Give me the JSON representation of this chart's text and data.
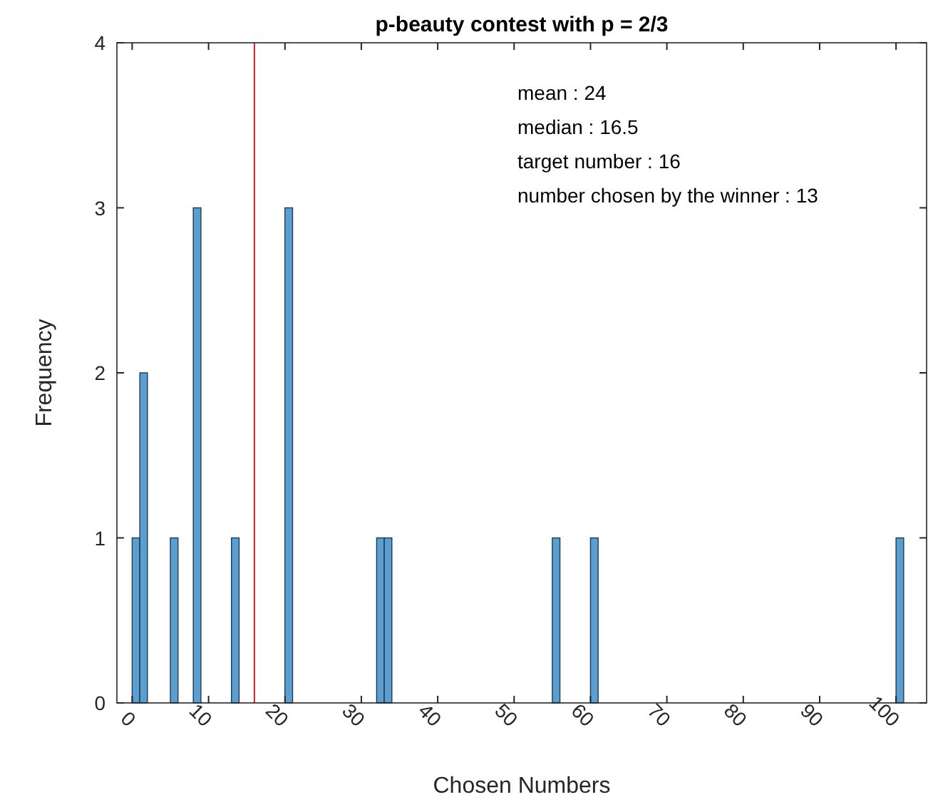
{
  "chart_data": {
    "type": "histogram",
    "title": "p-beauty contest with p = 2/3",
    "xlabel": "Chosen Numbers",
    "ylabel": "Frequency",
    "bins": [
      0,
      1,
      2,
      3,
      4,
      5,
      6,
      7,
      8,
      9,
      10,
      11,
      12,
      13,
      14,
      15,
      16,
      17,
      18,
      19,
      20,
      21,
      22,
      23,
      24,
      25,
      26,
      27,
      28,
      29,
      30,
      31,
      32,
      33,
      34,
      35,
      36,
      37,
      38,
      39,
      40,
      41,
      42,
      43,
      44,
      45,
      46,
      47,
      48,
      49,
      50,
      51,
      52,
      53,
      54,
      55,
      56,
      57,
      58,
      59,
      60,
      61,
      62,
      63,
      64,
      65,
      66,
      67,
      68,
      69,
      70,
      71,
      72,
      73,
      74,
      75,
      76,
      77,
      78,
      79,
      80,
      81,
      82,
      83,
      84,
      85,
      86,
      87,
      88,
      89,
      90,
      91,
      92,
      93,
      94,
      95,
      96,
      97,
      98,
      99,
      100,
      101
    ],
    "values": [
      1,
      2,
      0,
      0,
      0,
      1,
      0,
      0,
      3,
      0,
      0,
      0,
      0,
      1,
      0,
      0,
      0,
      0,
      0,
      0,
      3,
      0,
      0,
      0,
      0,
      0,
      0,
      0,
      0,
      0,
      0,
      0,
      1,
      1,
      0,
      0,
      0,
      0,
      0,
      0,
      0,
      0,
      0,
      0,
      0,
      0,
      0,
      0,
      0,
      0,
      0,
      0,
      0,
      0,
      0,
      1,
      0,
      0,
      0,
      0,
      1,
      0,
      0,
      0,
      0,
      0,
      0,
      0,
      0,
      0,
      0,
      0,
      0,
      0,
      0,
      0,
      0,
      0,
      0,
      0,
      0,
      0,
      0,
      0,
      0,
      0,
      0,
      0,
      0,
      0,
      0,
      0,
      0,
      0,
      0,
      0,
      0,
      0,
      0,
      0,
      1
    ],
    "color": "#5a9fd0",
    "xlim": [
      -2,
      104
    ],
    "xticks": [
      0,
      10,
      20,
      30,
      40,
      50,
      60,
      70,
      80,
      90,
      100
    ],
    "ylim": [
      0,
      4
    ],
    "yticks": [
      0,
      1,
      2,
      3,
      4
    ],
    "ref_lines": [
      {
        "axis": "x",
        "value": 16,
        "color": "#d62020"
      }
    ],
    "annotations": [
      "mean : 24",
      "median : 16.5",
      "target number : 16",
      "number chosen by the winner : 13"
    ],
    "grid": false
  }
}
